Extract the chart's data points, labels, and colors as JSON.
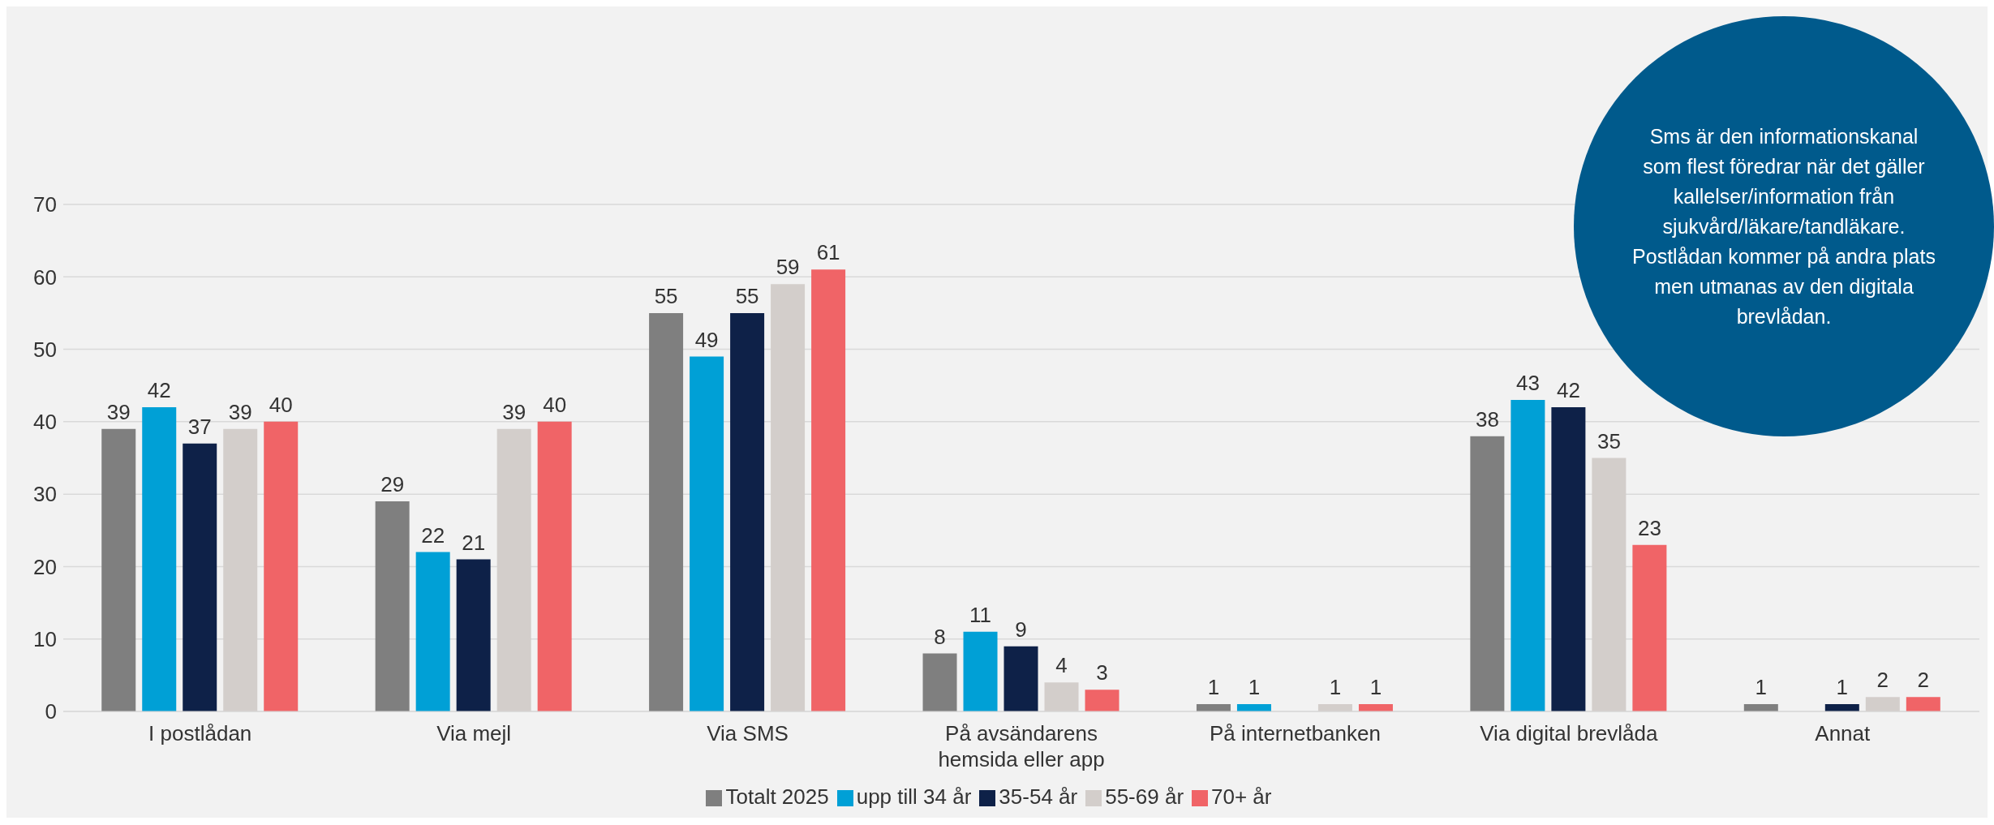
{
  "chart_data": {
    "type": "bar",
    "categories": [
      "I postlådan",
      "Via mejl",
      "Via SMS",
      "På avsändarens hemsida eller app",
      "På internetbanken",
      "Via digital brevlåda",
      "Annat"
    ],
    "series": [
      {
        "name": "Totalt 2025",
        "color": "#7f7f7f",
        "values": [
          39,
          29,
          55,
          8,
          1,
          38,
          1
        ]
      },
      {
        "name": "upp till 34 år",
        "color": "#00a0d6",
        "values": [
          42,
          22,
          49,
          11,
          1,
          43,
          null
        ]
      },
      {
        "name": "35-54 år",
        "color": "#0e2148",
        "values": [
          37,
          21,
          55,
          9,
          null,
          42,
          1
        ]
      },
      {
        "name": "55-69 år",
        "color": "#d3cecb",
        "values": [
          39,
          39,
          59,
          4,
          1,
          35,
          2
        ]
      },
      {
        "name": "70+ år",
        "color": "#f06467",
        "values": [
          40,
          40,
          61,
          3,
          1,
          23,
          2
        ]
      }
    ],
    "ylim": [
      0,
      70
    ],
    "yticks": [
      0,
      10,
      20,
      30,
      40,
      50,
      60,
      70
    ],
    "grid": "y",
    "legend": "bottom",
    "data_labels": true,
    "annotations": [
      "Sms är den informationskanal som flest föredrar när det gäller kallelser/information från sjukvård/läkare/tandläkare. Postlådan kommer på andra plats men utmanas av den digitala brevlådan."
    ]
  }
}
